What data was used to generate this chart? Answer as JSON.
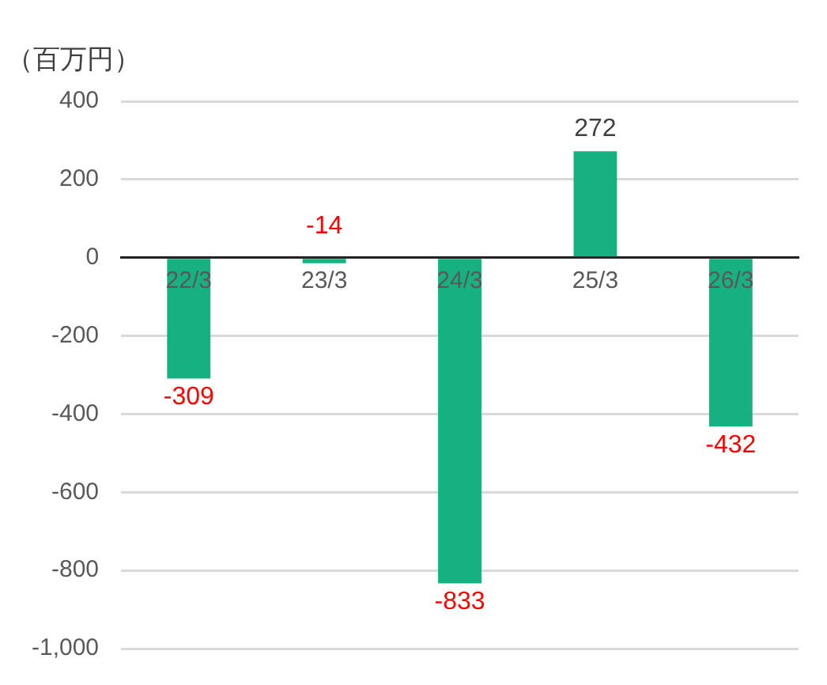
{
  "chart_data": {
    "type": "bar",
    "ylabel": "（百万円）",
    "categories": [
      "22/3",
      "23/3",
      "24/3",
      "25/3",
      "26/3"
    ],
    "values": [
      -309,
      -14,
      -833,
      272,
      -432
    ],
    "color": "#17b080",
    "ylim": [
      -1000,
      400
    ],
    "yticks": [
      {
        "value": -1000,
        "label": "-1,000"
      },
      -800,
      -600,
      -400,
      -200,
      0,
      200,
      400
    ],
    "grid": "y",
    "legend": false,
    "data_labels": true
  }
}
